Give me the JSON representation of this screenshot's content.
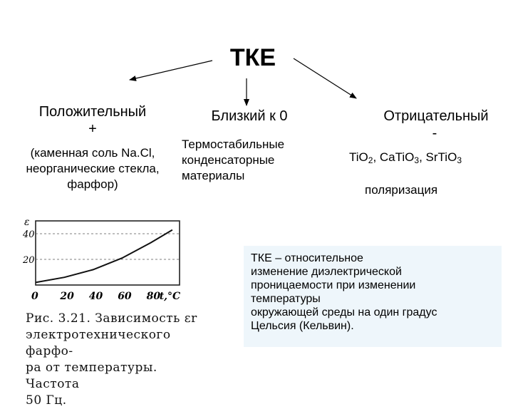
{
  "title": "ТКЕ",
  "left": {
    "heading": "Положительный",
    "sign": "+",
    "lines": [
      "(каменная соль Na.Cl,",
      "неорганические стекла,",
      "фарфор)"
    ]
  },
  "center": {
    "heading": "Близкий к 0",
    "lines": [
      "Термостабильные",
      "конденсаторные",
      "материалы"
    ]
  },
  "right": {
    "heading": "Отрицательный",
    "sign": "-",
    "formulas": [
      {
        "base": "TiO",
        "sub": "2",
        "sep": ", "
      },
      {
        "base": "CaTiO",
        "sub": "3",
        "sep": ", "
      },
      {
        "base": "SrTiO",
        "sub": "3",
        "sep": ""
      }
    ],
    "note": "поляризация"
  },
  "definition": [
    "ТКЕ – относительное",
    "изменение диэлектрической",
    "проницаемости при изменении",
    "температуры",
    "окружающей среды на один градус",
    "Цельсия (Кельвин)."
  ],
  "figure": {
    "y_axis_symbol": "ε",
    "y_ticks": [
      "40",
      "20"
    ],
    "x_ticks": [
      "0",
      "20",
      "40",
      "60",
      "80"
    ],
    "x_unit": "t,°C",
    "caption": [
      "Рис. 3.21. Зависимость εr",
      "электротехнического фарфо-",
      "ра от температуры. Частота",
      "50 Гц."
    ]
  },
  "chart_data": {
    "type": "line",
    "xlabel": "t,°C",
    "ylabel": "ε",
    "x": [
      0,
      20,
      40,
      60,
      80,
      95
    ],
    "values": [
      2,
      6,
      12,
      21,
      33,
      43
    ],
    "xlim": [
      0,
      100
    ],
    "ylim": [
      0,
      50
    ]
  }
}
